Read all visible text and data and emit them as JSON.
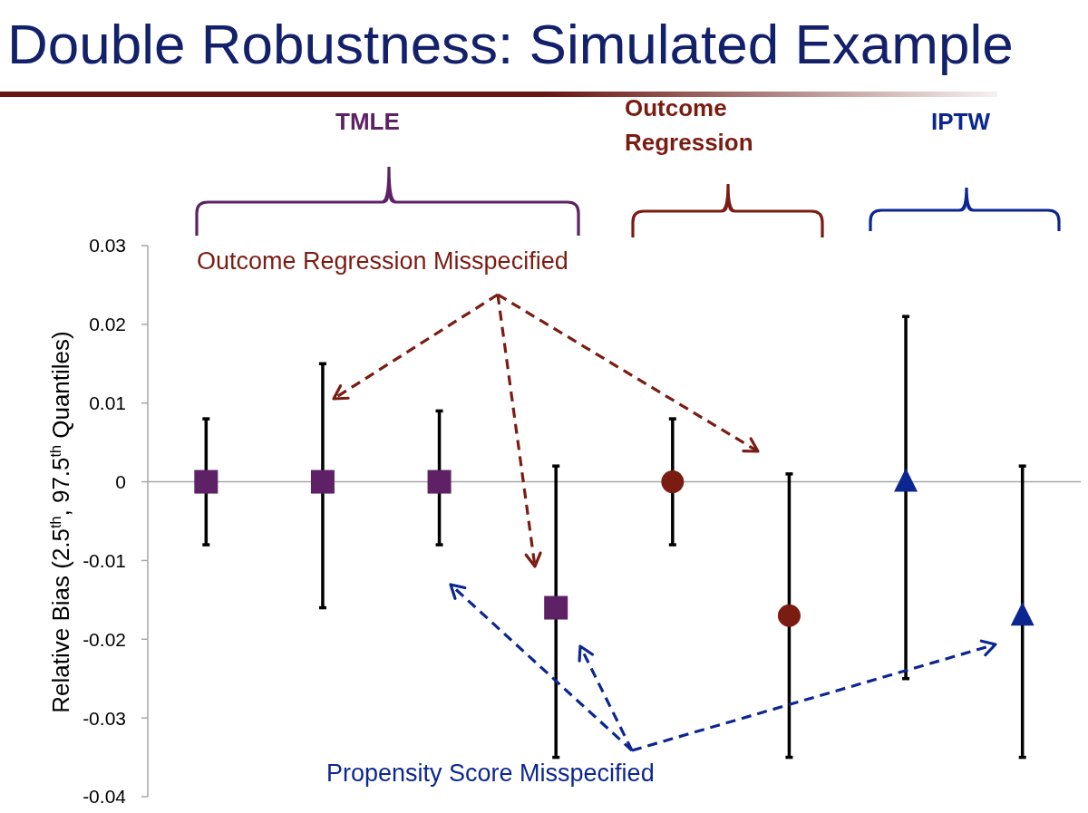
{
  "chart_data": {
    "type": "scatter",
    "title": "Double Robustness: Simulated Example",
    "ylabel": "Relative Bias (2.5$^{th}$, 97.5$^{th}$ Quantiles)",
    "categories": [
      null,
      null,
      null,
      null,
      null,
      null,
      null,
      null
    ],
    "series": [
      {
        "name": "TMLE",
        "color": "#5e2166",
        "marker": "square",
        "values": [
          0,
          0,
          0,
          -0.016,
          null,
          null,
          null,
          null
        ],
        "errors": [
          [
            -0.008,
            0.008
          ],
          [
            -0.016,
            0.015
          ],
          [
            -0.008,
            0.009
          ],
          [
            -0.035,
            0.002
          ],
          null,
          null,
          null,
          null
        ]
      },
      {
        "name": "Outcome Regression",
        "color": "#7a1c12",
        "marker": "circle",
        "values": [
          null,
          null,
          null,
          null,
          0,
          -0.017,
          null,
          null
        ],
        "errors": [
          null,
          null,
          null,
          null,
          [
            -0.008,
            0.008
          ],
          [
            -0.035,
            0.001
          ],
          null,
          null
        ]
      },
      {
        "name": "IPTW",
        "color": "#0b2690",
        "marker": "triangle",
        "values": [
          null,
          null,
          null,
          null,
          null,
          null,
          0,
          -0.017
        ],
        "errors": [
          null,
          null,
          null,
          null,
          null,
          null,
          [
            -0.025,
            0.021
          ],
          [
            -0.035,
            0.002
          ]
        ]
      }
    ],
    "ylim": [
      -0.04,
      0.03
    ],
    "yticks": [
      -0.04,
      -0.03,
      -0.02,
      -0.01,
      0,
      0.01,
      0.02,
      0.03
    ],
    "tick_labels": "y",
    "ref_lines": [
      {
        "axis": "y",
        "value": 0,
        "color": "#a6a6a6"
      }
    ],
    "annotations": [
      "Outcome Regression Misspecified",
      "Propensity Score Misspecified"
    ]
  }
}
